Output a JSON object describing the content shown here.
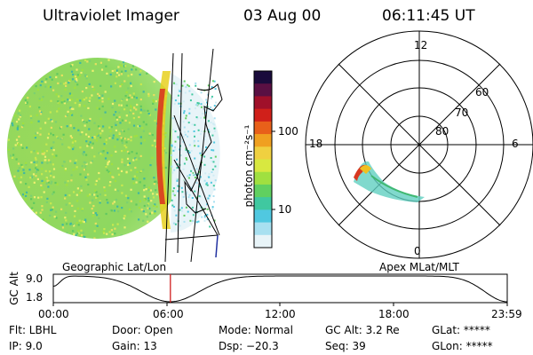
{
  "header": {
    "instrument": "Ultraviolet Imager",
    "date": "03 Aug 00",
    "time": "06:11:45 UT"
  },
  "colorbar": {
    "unit_label": "photon cm⁻²s⁻¹",
    "ticks": [
      "100",
      "10"
    ],
    "colors": [
      "#1a0b3b",
      "#5a1043",
      "#a0102a",
      "#d0201a",
      "#e8601a",
      "#f0a020",
      "#f0d040",
      "#d8e840",
      "#a0e040",
      "#60d060",
      "#40c8a0",
      "#50c8e0",
      "#a8e0f0",
      "#e8f4f8"
    ]
  },
  "globe_panel": {
    "label": "Geographic Lat/Lon"
  },
  "polar_panel": {
    "label": "Apex MLat/MLT",
    "mlt_labels": {
      "top": "12",
      "left": "18",
      "right": "6",
      "bottom": "0"
    },
    "lat_labels": [
      "60",
      "70",
      "80"
    ]
  },
  "timeline": {
    "ylabel": "GC Alt",
    "yticks": [
      "9.0",
      "1.8"
    ],
    "xticks": [
      "00:00",
      "06:00",
      "12:00",
      "18:00",
      "23:59"
    ],
    "current_fraction": 0.258
  },
  "info": {
    "flt": "Flt: LBHL",
    "ip": "IP:  9.0",
    "door": "Door: Open",
    "gain": "Gain: 13",
    "mode": "Mode: Normal",
    "dsp": "Dsp:  −20.3",
    "gc_alt": "GC Alt: 3.2 Re",
    "seq": "Seq: 39",
    "glat": "GLat: *****",
    "glon": "GLon: *****"
  }
}
